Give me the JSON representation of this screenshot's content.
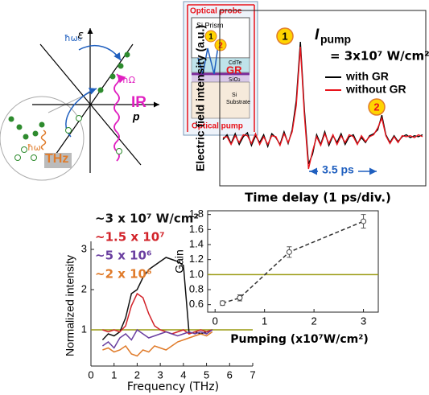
{
  "diagram": {
    "band": {
      "energy_axis": "ε",
      "momentum_axis": "p",
      "pump_photon": "ħω₀",
      "ir_photon": "ħΩ",
      "ir_label": "IR",
      "thz_photon": "ħω",
      "thz_label": "THz"
    },
    "setup": {
      "probe": "Optical probe",
      "prism": "Si Prism",
      "marker_1": "1",
      "marker_2": "2",
      "cdte": "CdTe",
      "graphene": "GR",
      "oxide": "SiO₂",
      "substrate_1": "Si",
      "substrate_2": "Substrate",
      "pump": "Optical pump"
    }
  },
  "chart_data": [
    {
      "type": "line",
      "y_label": "Electric field intensity (a.u.)",
      "x_label": "Time delay (1 ps/div.)",
      "x": [
        0,
        1,
        2,
        3,
        4,
        5,
        6,
        7,
        8,
        9,
        10,
        11,
        12,
        13,
        14,
        15,
        16,
        17,
        18,
        19,
        20,
        21,
        22,
        23,
        24,
        25,
        26,
        27,
        28,
        29,
        30,
        31,
        32,
        33,
        34,
        35,
        36,
        37,
        38,
        39,
        40,
        41,
        42,
        43,
        44,
        45,
        46,
        47,
        48,
        49
      ],
      "series": [
        {
          "name": "with GR",
          "color": "#000000",
          "values": [
            0,
            0.05,
            -0.04,
            0.06,
            -0.05,
            0.03,
            0.07,
            -0.06,
            0.04,
            -0.03,
            0.05,
            -0.07,
            0.06,
            0.02,
            -0.05,
            0.08,
            -0.04,
            0.1,
            0.4,
            1.0,
            0.3,
            -0.25,
            -0.15,
            0.05,
            -0.05,
            0.08,
            -0.06,
            0.04,
            -0.03,
            0.06,
            -0.05,
            0.03,
            0.05,
            -0.04,
            0.02,
            -0.03,
            0.04,
            0.06,
            0.1,
            0.25,
            0.05,
            -0.03,
            0.04,
            -0.02,
            0.03,
            0.05,
            0.02,
            0.04,
            0.03,
            0.05
          ]
        },
        {
          "name": "without GR",
          "color": "#e8131b",
          "values": [
            0.02,
            0.03,
            -0.05,
            0.04,
            -0.03,
            0.05,
            0.04,
            -0.04,
            0.06,
            -0.05,
            0.03,
            -0.05,
            0.04,
            0.03,
            -0.06,
            0.06,
            -0.03,
            0.08,
            0.35,
            0.95,
            0.25,
            -0.3,
            -0.12,
            0.03,
            -0.06,
            0.06,
            -0.04,
            0.05,
            -0.05,
            0.04,
            -0.03,
            0.05,
            0.03,
            -0.05,
            0.04,
            -0.02,
            0.03,
            0.05,
            0.12,
            0.22,
            0.04,
            -0.04,
            0.03,
            -0.03,
            0.04,
            0.03,
            0.04,
            0.02,
            0.05,
            0.03
          ]
        }
      ],
      "annotations": {
        "peak_1": "1",
        "peak_2": "2",
        "pump_symbol": "I",
        "pump_subscript": "pump",
        "pump_value": "= 3x10⁷ W/cm²",
        "delay": "3.5 ps"
      }
    },
    {
      "type": "line",
      "y_label": "Normalized intensity",
      "x_label": "Frequency (THz)",
      "x": [
        0.5,
        0.75,
        1,
        1.25,
        1.5,
        1.75,
        2,
        2.25,
        2.5,
        2.75,
        3,
        3.25,
        3.5,
        3.75,
        4,
        4.25,
        4.5,
        4.75,
        5,
        5.25
      ],
      "series": [
        {
          "name": "~3 x 10⁷ W/cm²",
          "color": "#111111",
          "values": [
            0.75,
            0.9,
            0.85,
            0.95,
            1.3,
            1.9,
            2.0,
            2.3,
            2.5,
            2.6,
            2.7,
            2.8,
            2.75,
            2.7,
            2.6,
            0.9,
            0.95,
            0.9,
            0.95,
            1.0
          ]
        },
        {
          "name": "~1.5 x 10⁷",
          "color": "#d2232a",
          "values": [
            1.0,
            0.95,
            1.0,
            0.95,
            1.1,
            1.6,
            1.9,
            1.8,
            1.4,
            1.1,
            1.0,
            0.95,
            0.9,
            0.95,
            1.0,
            0.9,
            0.95,
            1.0,
            0.95,
            1.0
          ]
        },
        {
          "name": "~5 x 10⁶",
          "color": "#6a3fa0",
          "values": [
            0.6,
            0.7,
            0.55,
            0.8,
            0.9,
            0.75,
            1.0,
            0.9,
            0.8,
            0.85,
            0.9,
            0.95,
            0.9,
            0.85,
            0.9,
            0.95,
            0.9,
            0.95,
            0.9,
            1.0
          ]
        },
        {
          "name": "~2 x 10⁶",
          "color": "#e07b2a",
          "values": [
            0.5,
            0.55,
            0.45,
            0.5,
            0.6,
            0.4,
            0.35,
            0.5,
            0.45,
            0.6,
            0.55,
            0.5,
            0.6,
            0.7,
            0.75,
            0.8,
            0.85,
            0.9,
            0.85,
            0.95
          ]
        }
      ],
      "xlim": [
        0,
        7
      ],
      "xticks": [
        0,
        1,
        2,
        3,
        4,
        5,
        6,
        7
      ],
      "ylim": [
        0.1,
        3.2
      ],
      "yticks": [
        1,
        2,
        3
      ],
      "reference_line": 1,
      "reference_color": "#9a9a10"
    },
    {
      "type": "scatter",
      "y_label": "Gain",
      "x_label": "Pumping (x10⁷W/cm²)",
      "x": [
        0.15,
        0.5,
        1.5,
        3
      ],
      "values": [
        0.62,
        0.69,
        1.3,
        1.71
      ],
      "errors": [
        0.03,
        0.04,
        0.07,
        0.09
      ],
      "color": "#444444",
      "xlim": [
        -0.15,
        3.3
      ],
      "xticks": [
        0,
        1,
        2,
        3
      ],
      "ylim": [
        0.5,
        1.85
      ],
      "yticks": [
        0.6,
        0.8,
        {
          "value": 1,
          "label": "1.0"
        },
        1.2,
        1.4,
        1.6,
        1.8
      ],
      "reference_line": 1,
      "reference_color": "#9a9a10"
    }
  ]
}
